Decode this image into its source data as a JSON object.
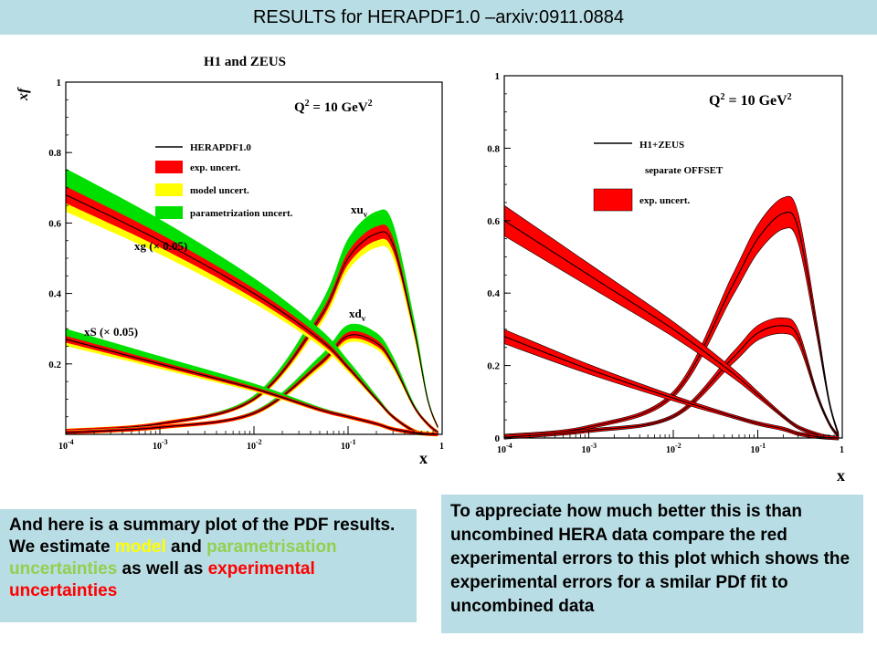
{
  "slide": {
    "title": "RESULTS for HERAPDF1.0 –arxiv:0911.0884"
  },
  "left_plot": {
    "header": "H1 and ZEUS",
    "y_axis_title": "xf",
    "x_axis_title": "x",
    "q2_label": "Q",
    "q2_sup": "2",
    "q2_value": " = 10 GeV",
    "y_ticks": [
      "0.2",
      "0.4",
      "0.6",
      "0.8",
      "1"
    ],
    "x_tick_base": "10",
    "x_tick_exps": [
      "-4",
      "-3",
      "-2",
      "-1"
    ],
    "x_tick_last": "1",
    "legend": [
      "HERAPDF1.0",
      "exp. uncert.",
      "model uncert.",
      "parametrization uncert."
    ],
    "curve_labels": {
      "xuv_main": "xu",
      "xuv_sub": "v",
      "xdv_main": "xd",
      "xdv_sub": "v",
      "xg": "xg (× 0.05)",
      "xs": "xS (× 0.05)"
    },
    "colors": {
      "exp": "#ff0000",
      "model": "#ffff00",
      "param": "#00e000"
    }
  },
  "right_plot": {
    "x_axis_title": "x",
    "q2_label": "Q",
    "q2_sup": "2",
    "q2_value": " = 10 GeV",
    "y_ticks": [
      "0",
      "0.2",
      "0.4",
      "0.6",
      "0.8",
      "1"
    ],
    "x_tick_base": "10",
    "x_tick_exps": [
      "-4",
      "-3",
      "-2",
      "-1"
    ],
    "x_tick_last": "1",
    "legend": [
      "H1+ZEUS",
      "separate OFFSET",
      "exp. uncert."
    ],
    "colors": {
      "exp": "#ff0000"
    }
  },
  "text_left": {
    "part1": "And here is a summary plot of the PDF results. We estimate ",
    "model": "model",
    "part2": " and ",
    "param": "parametrisation uncertainties",
    "part3": " as well as ",
    "exp": "experimental uncertainties"
  },
  "text_right": "To appreciate how much better this is than uncombined HERA data compare the red experimental errors to this plot which shows the experimental errors for a smilar PDf fit to uncombined data",
  "chart_data": [
    {
      "type": "line",
      "title": "H1 and ZEUS",
      "xlabel": "x",
      "ylabel": "xf",
      "xscale": "log",
      "xlim": [
        0.0001,
        1
      ],
      "ylim": [
        0,
        1
      ],
      "annotation": "Q² = 10 GeV²",
      "x": [
        0.0001,
        0.001,
        0.01,
        0.05,
        0.1,
        0.2,
        0.3,
        0.5,
        0.7,
        0.9
      ],
      "series": [
        {
          "name": "xu",
          "sub": "v",
          "values": [
            0.01,
            0.03,
            0.1,
            0.33,
            0.5,
            0.57,
            0.54,
            0.3,
            0.1,
            0.02
          ]
        },
        {
          "name": "xd",
          "sub": "v",
          "values": [
            0.005,
            0.02,
            0.06,
            0.2,
            0.28,
            0.26,
            0.2,
            0.08,
            0.03,
            0.005
          ]
        },
        {
          "name": "xg (× 0.05)",
          "values": [
            0.68,
            0.55,
            0.4,
            0.27,
            0.19,
            0.1,
            0.05,
            0.01,
            0.002,
            0.0
          ]
        },
        {
          "name": "xS (× 0.05)",
          "values": [
            0.27,
            0.2,
            0.13,
            0.07,
            0.05,
            0.03,
            0.015,
            0.005,
            0.001,
            0.0
          ]
        }
      ],
      "legend": [
        "HERAPDF1.0",
        "exp. uncert.",
        "model uncert.",
        "parametrization uncert."
      ],
      "legend_position": "top-right"
    },
    {
      "type": "line",
      "xlabel": "x",
      "xscale": "log",
      "xlim": [
        0.0001,
        1
      ],
      "ylim": [
        0,
        1
      ],
      "annotation": "Q² = 10 GeV²",
      "x": [
        0.0001,
        0.001,
        0.01,
        0.05,
        0.1,
        0.2,
        0.3,
        0.5,
        0.7,
        0.9
      ],
      "series": [
        {
          "values": [
            0.005,
            0.03,
            0.12,
            0.42,
            0.55,
            0.62,
            0.58,
            0.3,
            0.1,
            0.01
          ]
        },
        {
          "values": [
            0.002,
            0.02,
            0.06,
            0.22,
            0.29,
            0.31,
            0.28,
            0.12,
            0.04,
            0.005
          ]
        },
        {
          "values": [
            0.6,
            0.45,
            0.3,
            0.18,
            0.12,
            0.06,
            0.03,
            0.01,
            0.002,
            0.0
          ]
        },
        {
          "values": [
            0.28,
            0.19,
            0.11,
            0.06,
            0.04,
            0.025,
            0.012,
            0.004,
            0.001,
            0.0
          ]
        }
      ],
      "legend": [
        "H1+ZEUS",
        "separate OFFSET",
        "exp. uncert."
      ],
      "legend_position": "top-right"
    }
  ]
}
